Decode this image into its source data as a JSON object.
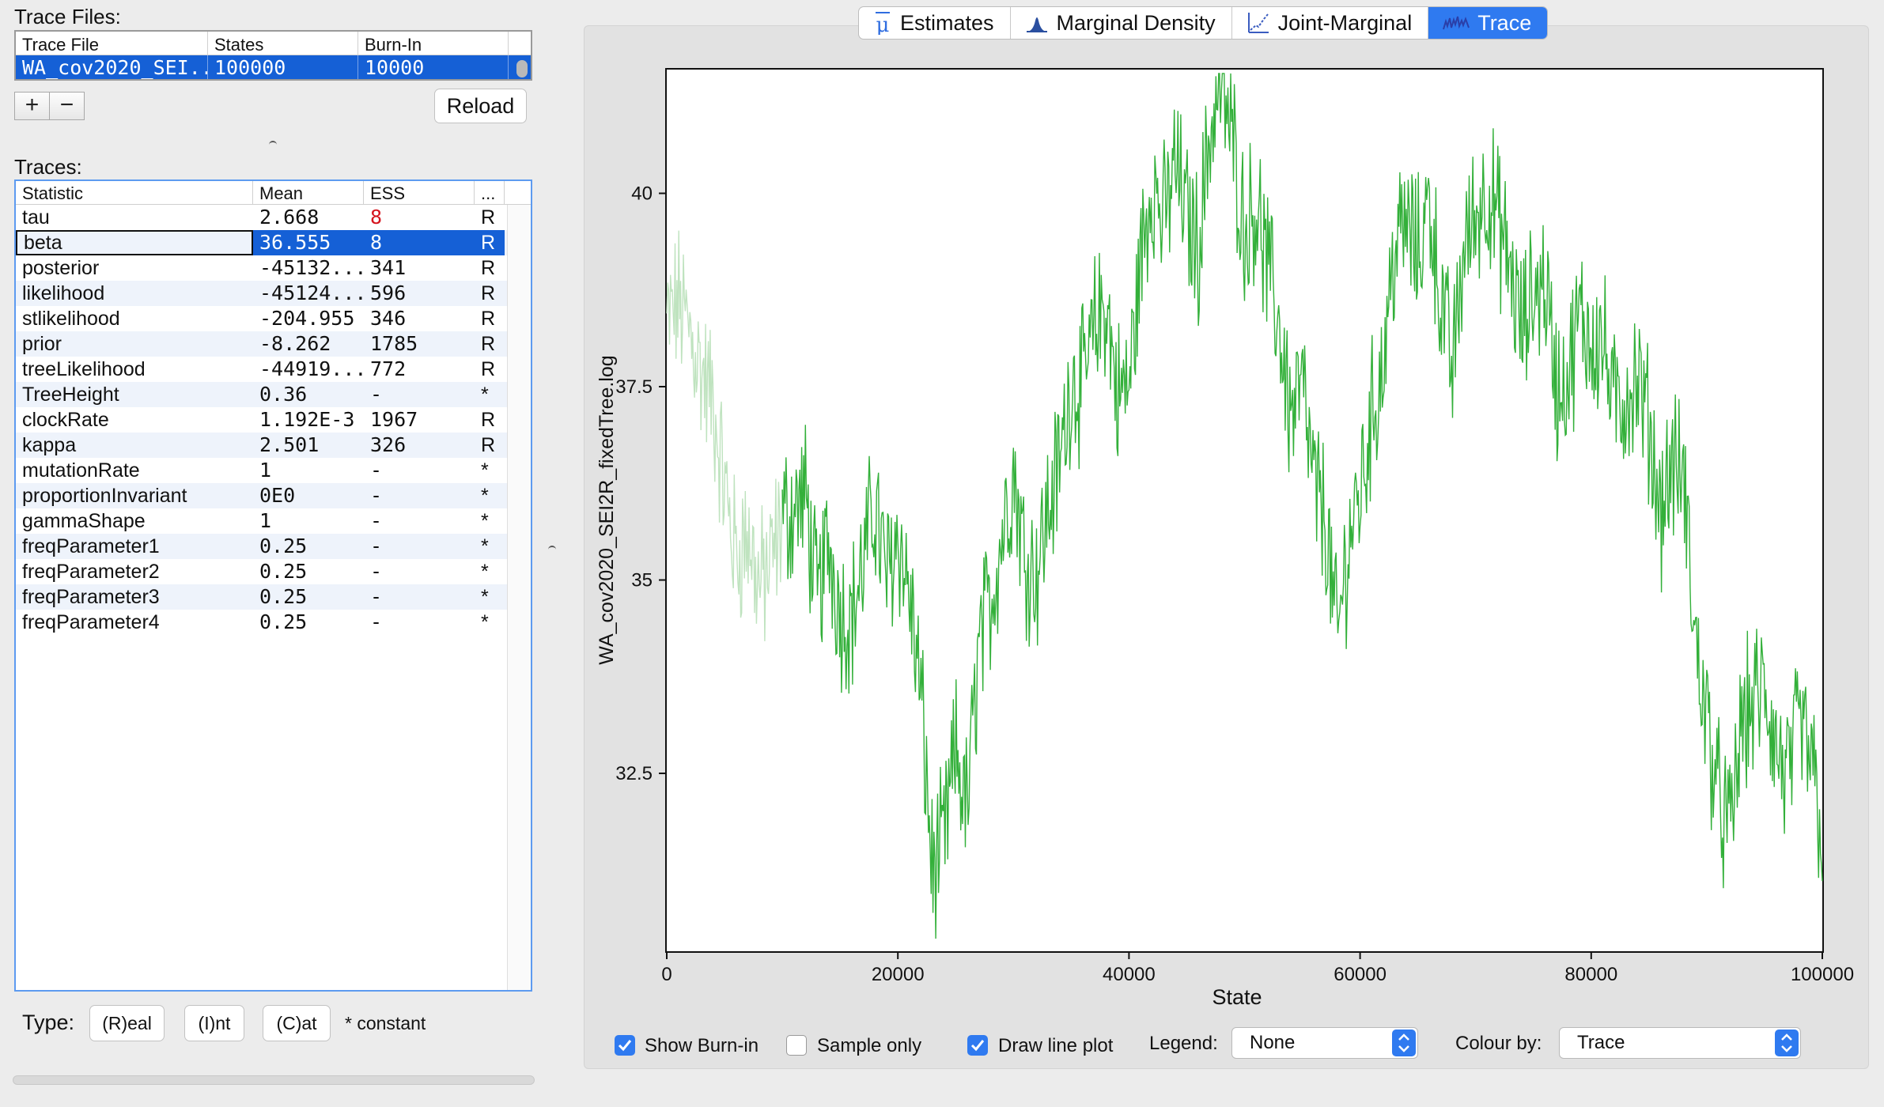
{
  "trace_files": {
    "label": "Trace Files:",
    "headers": [
      "Trace File",
      "States",
      "Burn-In"
    ],
    "row": {
      "file": "WA_cov2020_SEI...",
      "states": "100000",
      "burnin": "10000"
    },
    "add_label": "+",
    "remove_label": "−",
    "reload_label": "Reload"
  },
  "traces": {
    "label": "Traces:",
    "headers": [
      "Statistic",
      "Mean",
      "ESS",
      "..."
    ],
    "rows": [
      {
        "stat": "tau",
        "mean": "2.668",
        "ess": "8",
        "type": "R"
      },
      {
        "stat": "beta",
        "mean": "36.555",
        "ess": "8",
        "type": "R"
      },
      {
        "stat": "posterior",
        "mean": "-45132...",
        "ess": "341",
        "type": "R"
      },
      {
        "stat": "likelihood",
        "mean": "-45124...",
        "ess": "596",
        "type": "R"
      },
      {
        "stat": "stlikelihood",
        "mean": "-204.955",
        "ess": "346",
        "type": "R"
      },
      {
        "stat": "prior",
        "mean": "-8.262",
        "ess": "1785",
        "type": "R"
      },
      {
        "stat": "treeLikelihood",
        "mean": "-44919...",
        "ess": "772",
        "type": "R"
      },
      {
        "stat": "TreeHeight",
        "mean": "0.36",
        "ess": "-",
        "type": "*"
      },
      {
        "stat": "clockRate",
        "mean": "1.192E-3",
        "ess": "1967",
        "type": "R"
      },
      {
        "stat": "kappa",
        "mean": "2.501",
        "ess": "326",
        "type": "R"
      },
      {
        "stat": "mutationRate",
        "mean": "1",
        "ess": "-",
        "type": "*"
      },
      {
        "stat": "proportionInvariant",
        "mean": "0E0",
        "ess": "-",
        "type": "*"
      },
      {
        "stat": "gammaShape",
        "mean": "1",
        "ess": "-",
        "type": "*"
      },
      {
        "stat": "freqParameter1",
        "mean": "0.25",
        "ess": "-",
        "type": "*"
      },
      {
        "stat": "freqParameter2",
        "mean": "0.25",
        "ess": "-",
        "type": "*"
      },
      {
        "stat": "freqParameter3",
        "mean": "0.25",
        "ess": "-",
        "type": "*"
      },
      {
        "stat": "freqParameter4",
        "mean": "0.25",
        "ess": "-",
        "type": "*"
      }
    ],
    "selected_index": 1
  },
  "type_bar": {
    "label": "Type:",
    "real": "(R)eal",
    "int": "(I)nt",
    "cat": "(C)at",
    "constant": "* constant"
  },
  "tabs": [
    {
      "label": "Estimates",
      "icon": "mu-icon"
    },
    {
      "label": "Marginal Density",
      "icon": "density-icon"
    },
    {
      "label": "Joint-Marginal",
      "icon": "joint-marginal-icon"
    },
    {
      "label": "Trace",
      "icon": "trace-icon",
      "active": true
    }
  ],
  "chart_data": {
    "type": "line",
    "xlabel": "State",
    "ylabel": "WA_cov2020_SEI2R_fixedTree.log",
    "xlim": [
      0,
      100000
    ],
    "ylim": [
      30.2,
      41.6
    ],
    "xticks": [
      0,
      20000,
      40000,
      60000,
      80000,
      100000
    ],
    "yticks": [
      32.5,
      35,
      37.5,
      40
    ],
    "ytick_labels": [
      "32.5",
      "35",
      "37.5",
      "40"
    ],
    "burnin_end": 10000,
    "line_color": "#33b03a",
    "burnin_color": "#bfe3bf",
    "series": [
      {
        "x": [
          0,
          1000,
          2000,
          3000,
          4000,
          5000,
          6000,
          7000,
          8000,
          9000,
          10000,
          11000,
          12000,
          13000,
          14000,
          15000,
          16000,
          17000,
          18000,
          19000,
          20000,
          21000,
          22000,
          23000,
          24000,
          25000,
          26000,
          27000,
          28000,
          29000,
          30000,
          31000,
          32000,
          33000,
          34000,
          35000,
          36000,
          37000,
          38000,
          39000,
          40000,
          41000,
          42000,
          43000,
          44000,
          45000,
          46000,
          47000,
          48000,
          49000,
          50000,
          51000,
          52000,
          53000,
          54000,
          55000,
          56000,
          57000,
          58000,
          59000,
          60000,
          61000,
          62000,
          63000,
          64000,
          65000,
          66000,
          67000,
          68000,
          69000,
          70000,
          71000,
          72000,
          73000,
          74000,
          75000,
          76000,
          77000,
          78000,
          79000,
          80000,
          81000,
          82000,
          83000,
          84000,
          85000,
          86000,
          87000,
          88000,
          89000,
          90000,
          91000,
          92000,
          93000,
          94000,
          95000,
          96000,
          97000,
          98000,
          99000,
          100000
        ],
        "y": [
          38.3,
          38.6,
          38.2,
          37.7,
          37.3,
          36.2,
          35.3,
          35.6,
          34.9,
          35.2,
          35.8,
          35.9,
          36.1,
          34.7,
          35.5,
          34.6,
          34.5,
          35.2,
          36.0,
          35.0,
          35.6,
          34.8,
          33.5,
          31.2,
          31.6,
          32.8,
          32.0,
          34.1,
          34.7,
          35.6,
          36.4,
          35.3,
          35.1,
          35.9,
          36.5,
          37.6,
          37.5,
          38.2,
          38.6,
          37.4,
          37.5,
          39.1,
          40.2,
          39.6,
          40.4,
          39.7,
          39.3,
          40.8,
          41.4,
          40.7,
          39.5,
          39.9,
          39.0,
          38.3,
          37.1,
          37.5,
          36.2,
          35.8,
          34.2,
          35.5,
          36.1,
          37.1,
          37.8,
          39.3,
          39.6,
          39.2,
          39.9,
          38.6,
          37.7,
          39.3,
          39.7,
          40.1,
          39.6,
          39.0,
          38.2,
          38.7,
          38.9,
          37.5,
          37.6,
          38.4,
          38.1,
          38.1,
          37.2,
          37.4,
          37.6,
          37.0,
          35.9,
          36.5,
          36.3,
          34.2,
          33.2,
          32.2,
          31.7,
          33.1,
          33.4,
          33.6,
          32.8,
          32.4,
          33.1,
          32.7,
          31.7
        ]
      }
    ]
  },
  "controls": {
    "show_burnin": {
      "label": "Show Burn-in",
      "checked": true
    },
    "sample_only": {
      "label": "Sample only",
      "checked": false
    },
    "draw_line": {
      "label": "Draw line plot",
      "checked": true
    },
    "legend": {
      "label": "Legend:",
      "value": "None"
    },
    "colour_by": {
      "label": "Colour by:",
      "value": "Trace"
    }
  }
}
